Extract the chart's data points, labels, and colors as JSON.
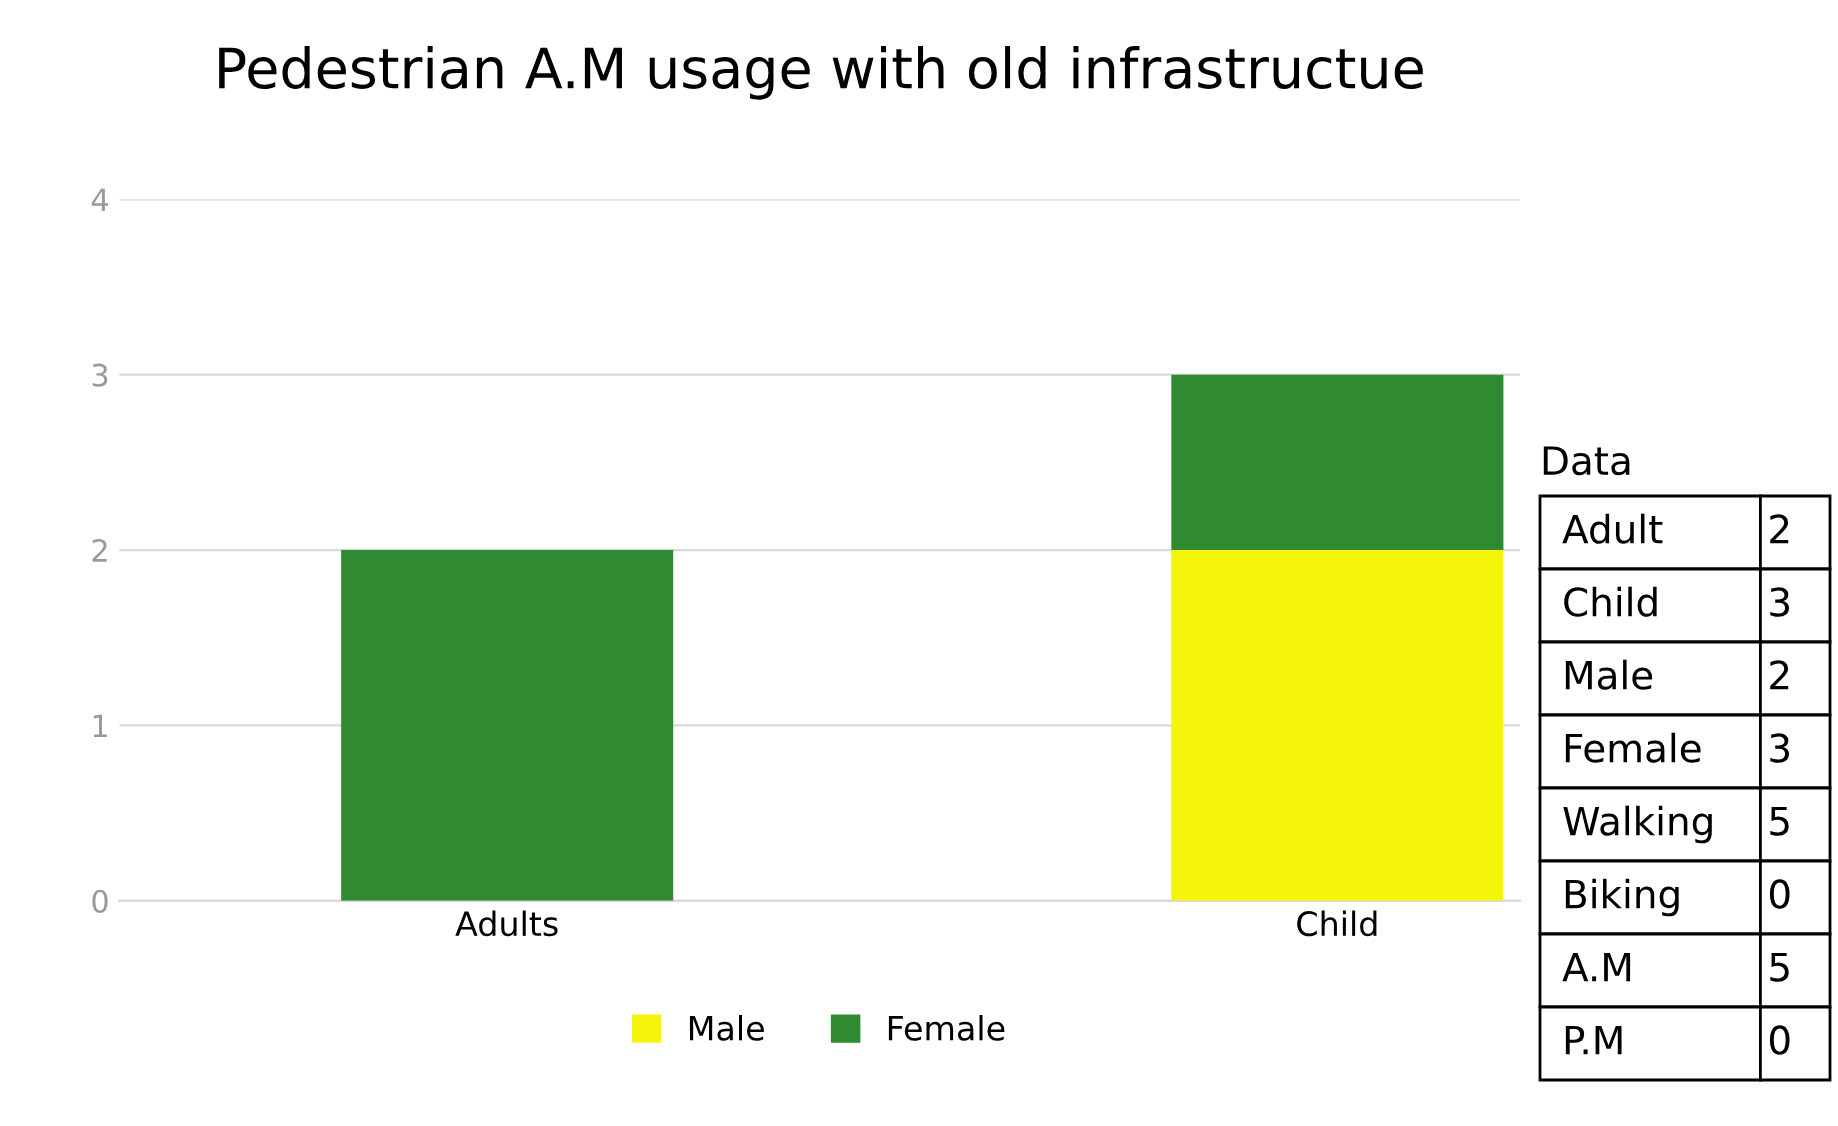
{
  "chart_data": {
    "type": "bar",
    "title": "Pedestrian A.M usage with old infrastructue",
    "categories": [
      "Adults",
      "Child"
    ],
    "stacked": true,
    "series": [
      {
        "name": "Male",
        "color": "#f5f50a",
        "values": [
          0,
          2
        ]
      },
      {
        "name": "Female",
        "color": "#2f8a32",
        "values": [
          2,
          1
        ]
      }
    ],
    "ylim": [
      0,
      4
    ],
    "yticks": [
      0,
      1,
      2,
      3,
      4
    ],
    "grid": "y",
    "legend": "bottom",
    "annotations": [
      "Data",
      "Adult",
      "2",
      "Child",
      "3",
      "Male",
      "2",
      "Female",
      "3",
      "Walking",
      "5",
      "Biking",
      "0",
      "A.M",
      "5",
      "P.M",
      "0"
    ]
  }
}
